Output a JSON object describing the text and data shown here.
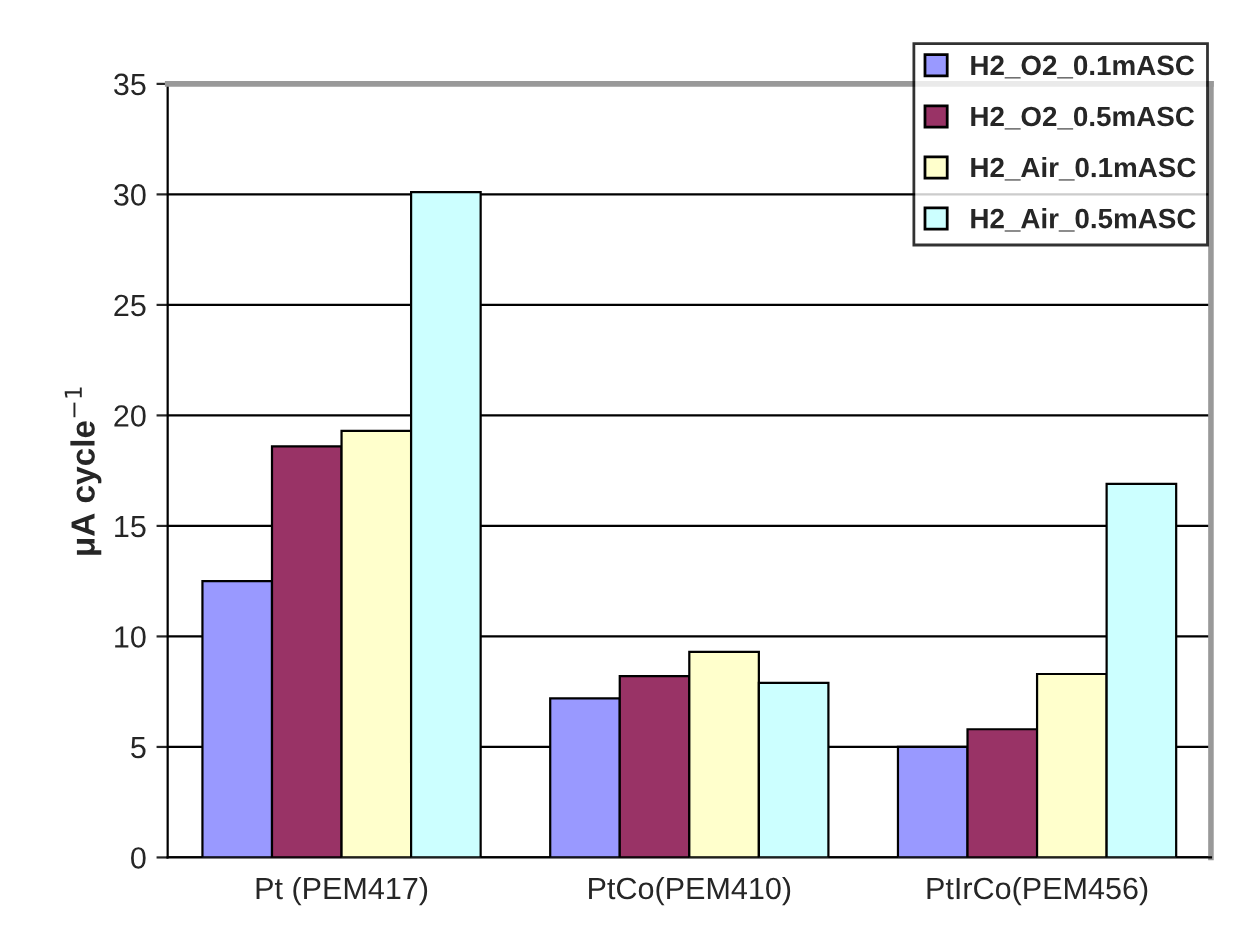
{
  "chart_data": {
    "type": "bar",
    "ylabel": "μA cycle$^{−1}$",
    "categories": [
      "Pt (PEM417)",
      "PtCo(PEM410)",
      "PtIrCo(PEM456)"
    ],
    "series": [
      {
        "name": "H2_O2_0.1mASC",
        "color": "#9999ff",
        "values": [
          12.5,
          7.2,
          5.0
        ]
      },
      {
        "name": "H2_O2_0.5mASC",
        "color": "#993366",
        "values": [
          18.6,
          8.2,
          5.8
        ]
      },
      {
        "name": "H2_Air_0.1mASC",
        "color": "#ffffcc",
        "values": [
          19.3,
          9.3,
          8.3
        ]
      },
      {
        "name": "H2_Air_0.5mASC",
        "color": "#ccffff",
        "values": [
          30.1,
          7.9,
          16.9
        ]
      }
    ],
    "ylim": [
      0,
      35
    ],
    "yticks": [
      0,
      5,
      10,
      15,
      20,
      25,
      30,
      35
    ],
    "grid": "y",
    "legend": "top right"
  }
}
